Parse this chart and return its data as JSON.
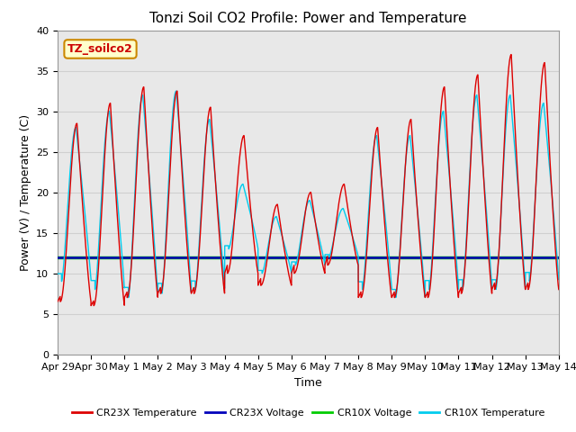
{
  "title": "Tonzi Soil CO2 Profile: Power and Temperature",
  "xlabel": "Time",
  "ylabel": "Power (V) / Temperature (C)",
  "ylim": [
    0,
    40
  ],
  "yticks": [
    0,
    5,
    10,
    15,
    20,
    25,
    30,
    35,
    40
  ],
  "xtick_labels": [
    "Apr 29",
    "Apr 30",
    "May 1",
    "May 2",
    "May 3",
    "May 4",
    "May 5",
    "May 6",
    "May 7",
    "May 8",
    "May 9",
    "May 10",
    "May 11",
    "May 12",
    "May 13",
    "May 14"
  ],
  "bg_color": "#e8e8e8",
  "cr23x_temp_color": "#dd0000",
  "cr23x_volt_color": "#0000bb",
  "cr10x_volt_color": "#00cc00",
  "cr10x_temp_color": "#00ccee",
  "annotation_text": "TZ_soilco2",
  "annotation_bg": "#ffffcc",
  "annotation_border": "#cc8800",
  "cr23x_voltage_value": 11.9,
  "cr10x_voltage_value": 12.0,
  "grid_color": "#cccccc",
  "title_fontsize": 11,
  "label_fontsize": 9,
  "tick_fontsize": 8
}
